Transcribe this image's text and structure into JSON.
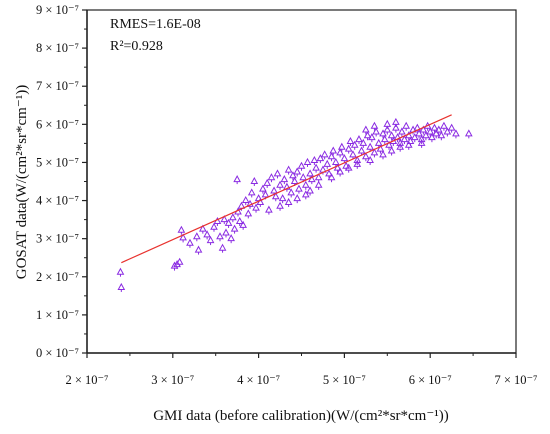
{
  "chart_data": {
    "type": "scatter",
    "title": "",
    "xlabel": "GMI data (before calibration)(W/(cm²*sr*cm⁻¹))",
    "ylabel": "GOSAT data(W/(cm²*sr*cm⁻¹))",
    "xlim": [
      2e-07,
      7e-07
    ],
    "ylim": [
      0,
      9e-07
    ],
    "x_ticks": [
      "2 × 10⁻⁷",
      "3 × 10⁻⁷",
      "4 × 10⁻⁷",
      "5 × 10⁻⁷",
      "6 × 10⁻⁷",
      "7 × 10⁻⁷"
    ],
    "y_ticks": [
      "0 × 10⁻⁷",
      "1 × 10⁻⁷",
      "2 × 10⁻⁷",
      "3 × 10⁻⁷",
      "4 × 10⁻⁷",
      "5 × 10⁻⁷",
      "6 × 10⁻⁷",
      "7 × 10⁻⁷",
      "8 × 10⁻⁷",
      "9 × 10⁻⁷"
    ],
    "annotations": [
      "RMES=1.6E-08",
      "R²=0.928"
    ],
    "grid": false,
    "marker_color": "#8a2be2",
    "fit_line_color": "#e8322e",
    "fit_line": {
      "x": [
        2.4e-07,
        6.25e-07
      ],
      "y": [
        2.37e-07,
        6.25e-07
      ]
    },
    "points": [
      [
        2.39e-07,
        2.12e-07
      ],
      [
        2.4e-07,
        1.72e-07
      ],
      [
        3.02e-07,
        2.28e-07
      ],
      [
        3.05e-07,
        2.32e-07
      ],
      [
        3.08e-07,
        2.38e-07
      ],
      [
        3.1e-07,
        3.22e-07
      ],
      [
        3.12e-07,
        3.02e-07
      ],
      [
        3.2e-07,
        2.88e-07
      ],
      [
        3.28e-07,
        3.05e-07
      ],
      [
        3.3e-07,
        2.7e-07
      ],
      [
        3.35e-07,
        3.25e-07
      ],
      [
        3.4e-07,
        3.1e-07
      ],
      [
        3.44e-07,
        2.95e-07
      ],
      [
        3.48e-07,
        3.3e-07
      ],
      [
        3.52e-07,
        3.45e-07
      ],
      [
        3.55e-07,
        3.05e-07
      ],
      [
        3.58e-07,
        2.75e-07
      ],
      [
        3.6e-07,
        3.5e-07
      ],
      [
        3.62e-07,
        3.15e-07
      ],
      [
        3.65e-07,
        3.4e-07
      ],
      [
        3.68e-07,
        3e-07
      ],
      [
        3.7e-07,
        3.55e-07
      ],
      [
        3.72e-07,
        3.25e-07
      ],
      [
        3.75e-07,
        4.55e-07
      ],
      [
        3.76e-07,
        3.7e-07
      ],
      [
        3.78e-07,
        3.45e-07
      ],
      [
        3.8e-07,
        3.85e-07
      ],
      [
        3.82e-07,
        3.35e-07
      ],
      [
        3.85e-07,
        4e-07
      ],
      [
        3.88e-07,
        3.65e-07
      ],
      [
        3.9e-07,
        3.9e-07
      ],
      [
        3.92e-07,
        4.2e-07
      ],
      [
        3.95e-07,
        4.5e-07
      ],
      [
        3.97e-07,
        3.8e-07
      ],
      [
        4e-07,
        4.05e-07
      ],
      [
        4.02e-07,
        3.95e-07
      ],
      [
        4.05e-07,
        4.3e-07
      ],
      [
        4.08e-07,
        4.15e-07
      ],
      [
        4.1e-07,
        4.45e-07
      ],
      [
        4.12e-07,
        3.75e-07
      ],
      [
        4.15e-07,
        4.6e-07
      ],
      [
        4.18e-07,
        4.25e-07
      ],
      [
        4.2e-07,
        4.1e-07
      ],
      [
        4.22e-07,
        4.7e-07
      ],
      [
        4.25e-07,
        4.4e-07
      ],
      [
        4.28e-07,
        4.05e-07
      ],
      [
        4.3e-07,
        4.55e-07
      ],
      [
        4.33e-07,
        4.35e-07
      ],
      [
        4.35e-07,
        4.8e-07
      ],
      [
        4.38e-07,
        4.2e-07
      ],
      [
        4.4e-07,
        4.65e-07
      ],
      [
        4.42e-07,
        4.5e-07
      ],
      [
        4.45e-07,
        4.75e-07
      ],
      [
        4.47e-07,
        4.3e-07
      ],
      [
        4.5e-07,
        4.9e-07
      ],
      [
        4.52e-07,
        4.6e-07
      ],
      [
        4.55e-07,
        4.4e-07
      ],
      [
        4.57e-07,
        5e-07
      ],
      [
        4.6e-07,
        4.7e-07
      ],
      [
        4.62e-07,
        4.55e-07
      ],
      [
        4.65e-07,
        5.05e-07
      ],
      [
        4.67e-07,
        4.85e-07
      ],
      [
        4.7e-07,
        4.6e-07
      ],
      [
        4.72e-07,
        5.1e-07
      ],
      [
        4.75e-07,
        4.8e-07
      ],
      [
        4.77e-07,
        5.2e-07
      ],
      [
        4.8e-07,
        4.95e-07
      ],
      [
        4.82e-07,
        4.7e-07
      ],
      [
        4.85e-07,
        5.15e-07
      ],
      [
        4.87e-07,
        5.3e-07
      ],
      [
        4.9e-07,
        5e-07
      ],
      [
        4.92e-07,
        4.85e-07
      ],
      [
        4.95e-07,
        5.25e-07
      ],
      [
        4.97e-07,
        5.4e-07
      ],
      [
        5e-07,
        5.1e-07
      ],
      [
        5.02e-07,
        4.9e-07
      ],
      [
        5.05e-07,
        5.35e-07
      ],
      [
        5.07e-07,
        5.55e-07
      ],
      [
        5.1e-07,
        5.2e-07
      ],
      [
        5.12e-07,
        5.45e-07
      ],
      [
        5.15e-07,
        5.05e-07
      ],
      [
        5.17e-07,
        5.6e-07
      ],
      [
        5.2e-07,
        5.3e-07
      ],
      [
        5.22e-07,
        5.5e-07
      ],
      [
        5.25e-07,
        5.15e-07
      ],
      [
        5.27e-07,
        5.7e-07
      ],
      [
        5.3e-07,
        5.4e-07
      ],
      [
        5.32e-07,
        5.65e-07
      ],
      [
        5.35e-07,
        5.25e-07
      ],
      [
        5.37e-07,
        5.8e-07
      ],
      [
        5.4e-07,
        5.5e-07
      ],
      [
        5.42e-07,
        5.35e-07
      ],
      [
        5.45e-07,
        5.75e-07
      ],
      [
        5.47e-07,
        5.6e-07
      ],
      [
        5.5e-07,
        5.85e-07
      ],
      [
        5.52e-07,
        5.45e-07
      ],
      [
        5.55e-07,
        5.7e-07
      ],
      [
        5.57e-07,
        5.55e-07
      ],
      [
        5.6e-07,
        5.9e-07
      ],
      [
        5.62e-07,
        5.65e-07
      ],
      [
        5.65e-07,
        5.5e-07
      ],
      [
        5.67e-07,
        5.8e-07
      ],
      [
        5.7e-07,
        5.6e-07
      ],
      [
        5.72e-07,
        5.95e-07
      ],
      [
        5.75e-07,
        5.7e-07
      ],
      [
        5.77e-07,
        5.55e-07
      ],
      [
        5.8e-07,
        5.85e-07
      ],
      [
        5.82e-07,
        5.65e-07
      ],
      [
        5.85e-07,
        5.9e-07
      ],
      [
        5.87e-07,
        5.75e-07
      ],
      [
        5.9e-07,
        5.6e-07
      ],
      [
        5.92e-07,
        5.85e-07
      ],
      [
        5.95e-07,
        5.7e-07
      ],
      [
        5.97e-07,
        5.95e-07
      ],
      [
        6e-07,
        5.8e-07
      ],
      [
        6.02e-07,
        5.65e-07
      ],
      [
        6.05e-07,
        5.9e-07
      ],
      [
        6.07e-07,
        5.75e-07
      ],
      [
        6.1e-07,
        5.85e-07
      ],
      [
        6.13e-07,
        5.7e-07
      ],
      [
        6.16e-07,
        5.95e-07
      ],
      [
        6.2e-07,
        5.8e-07
      ],
      [
        6.25e-07,
        5.9e-07
      ],
      [
        6.3e-07,
        5.75e-07
      ],
      [
        6.45e-07,
        5.75e-07
      ],
      [
        4.6e-07,
        4.25e-07
      ],
      [
        4.7e-07,
        4.4e-07
      ],
      [
        4.85e-07,
        4.6e-07
      ],
      [
        4.95e-07,
        4.75e-07
      ],
      [
        5.05e-07,
        4.85e-07
      ],
      [
        5.15e-07,
        4.95e-07
      ],
      [
        5.3e-07,
        5.05e-07
      ],
      [
        5.45e-07,
        5.2e-07
      ],
      [
        5.55e-07,
        5.3e-07
      ],
      [
        5.65e-07,
        5.4e-07
      ],
      [
        5.75e-07,
        5.45e-07
      ],
      [
        5.9e-07,
        5.5e-07
      ],
      [
        4.45e-07,
        4.05e-07
      ],
      [
        4.55e-07,
        4.15e-07
      ],
      [
        4.35e-07,
        3.95e-07
      ],
      [
        4.25e-07,
        3.85e-07
      ],
      [
        5.35e-07,
        5.95e-07
      ],
      [
        5.5e-07,
        6e-07
      ],
      [
        5.25e-07,
        5.85e-07
      ],
      [
        5.6e-07,
        6.05e-07
      ]
    ]
  }
}
